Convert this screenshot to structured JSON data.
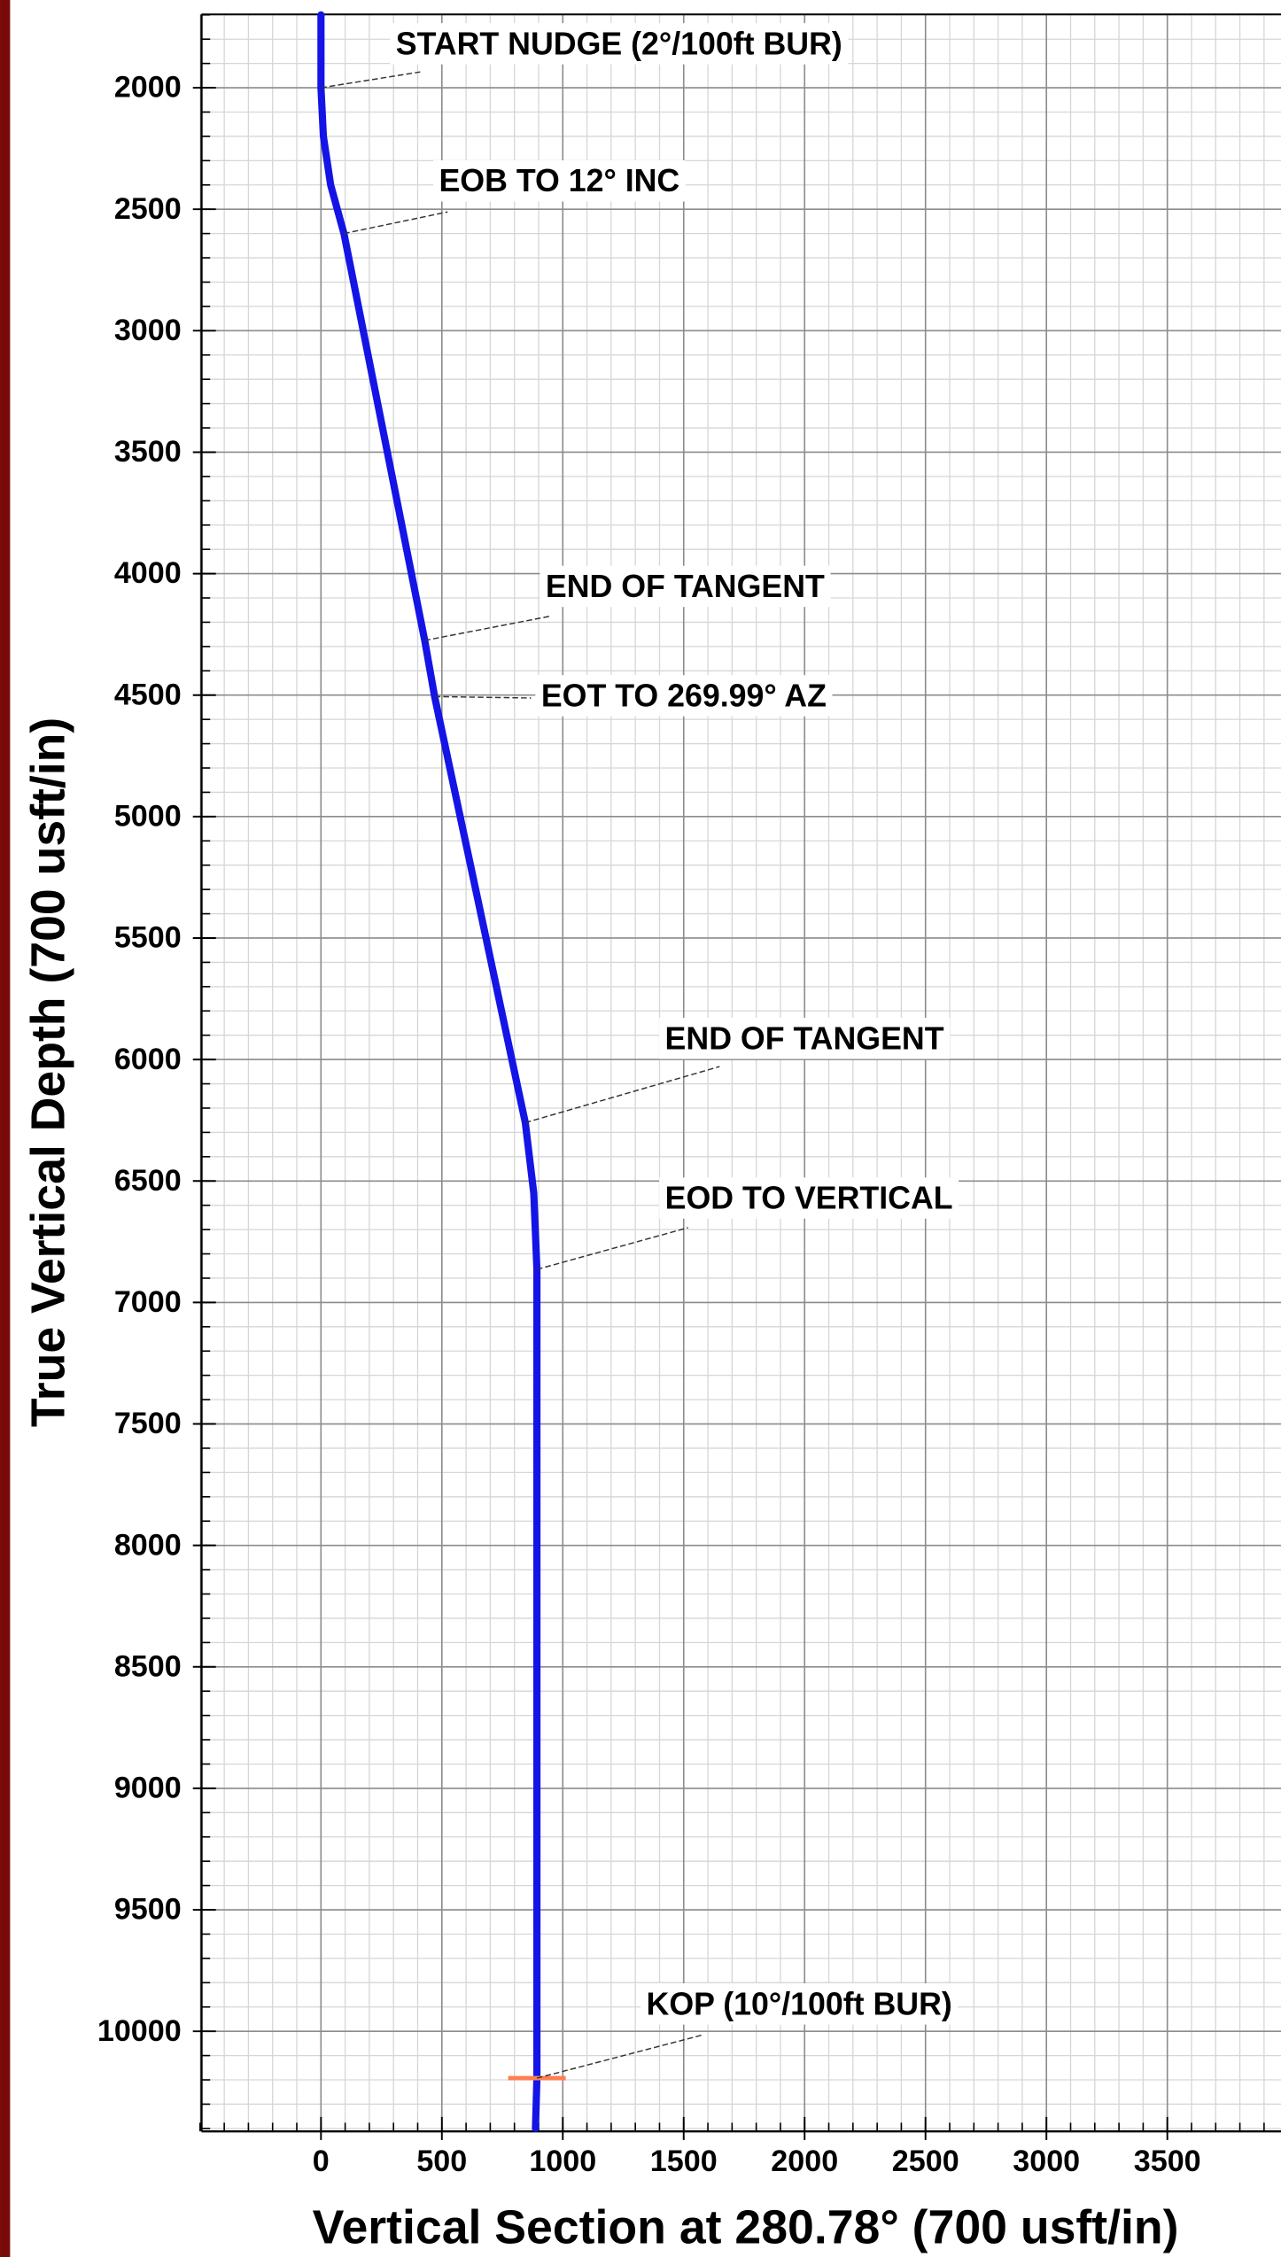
{
  "chart_data": {
    "type": "line",
    "xlabel": "Vertical Section at 280.78° (700 usft/in)",
    "ylabel": "True Vertical Depth (700 usft/in)",
    "xlim": [
      -494,
      3970
    ],
    "ylim": [
      10412,
      1698
    ],
    "xticks": [
      0,
      500,
      1000,
      1500,
      2000,
      2500,
      3000,
      3500
    ],
    "yticks": [
      2000,
      2500,
      3000,
      3500,
      4000,
      4500,
      5000,
      5500,
      6000,
      6500,
      7000,
      7500,
      8000,
      8500,
      9000,
      9500,
      10000
    ],
    "grid": true,
    "series": [
      {
        "color": "#1414e6",
        "x": [
          0,
          0,
          10,
          40,
          95,
          429,
          470,
          845,
          880,
          893,
          893,
          887
        ],
        "values": [
          1700,
          2000,
          2200,
          2400,
          2600,
          4275,
          4506,
          6260,
          6550,
          6864,
          10193,
          10400
        ]
      }
    ],
    "annotations": [
      {
        "text": "START NUDGE (2°/100ft BUR)",
        "x": 0,
        "y": 2000
      },
      {
        "text": "EOB TO 12° INC",
        "x": 95,
        "y": 2600
      },
      {
        "text": "END OF TANGENT",
        "x": 429,
        "y": 4275
      },
      {
        "text": "EOT TO 269.99° AZ",
        "x": 470,
        "y": 4506
      },
      {
        "text": "END OF TANGENT",
        "x": 845,
        "y": 6260
      },
      {
        "text": "EOD TO VERTICAL",
        "x": 893,
        "y": 6864
      },
      {
        "text": "KOP (10°/100ft BUR)",
        "x": 893,
        "y": 10193
      }
    ],
    "marker_color": "#ff7f50"
  }
}
